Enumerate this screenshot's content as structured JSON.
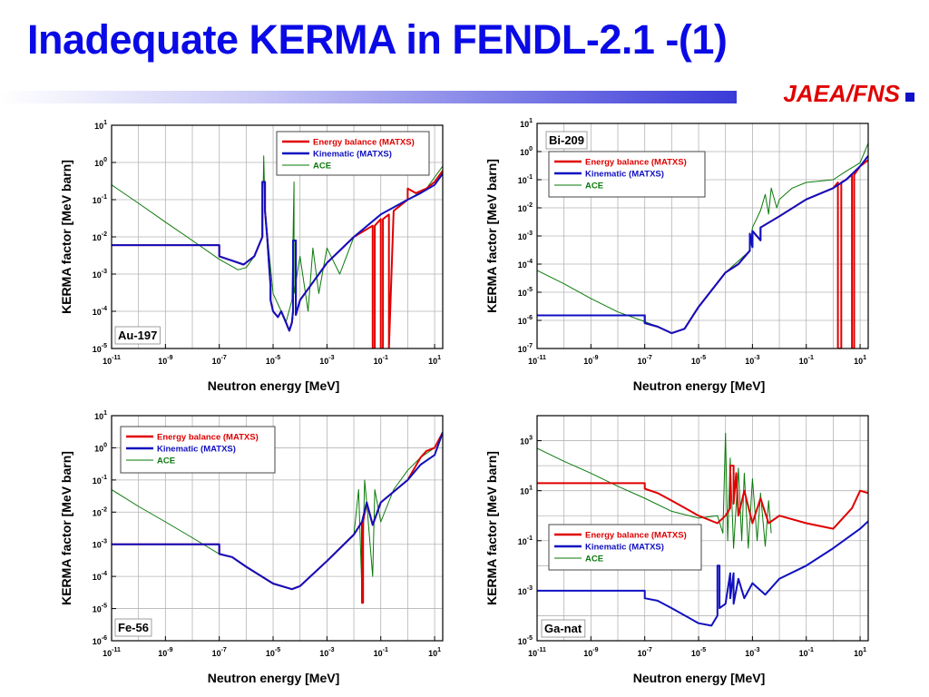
{
  "slide": {
    "title": "Inadequate KERMA in FENDL-2.1 -(1)",
    "org": "JAEA/FNS"
  },
  "colors": {
    "title": "#0a0ae6",
    "org": "#e00000",
    "energy_balance": "#e00000",
    "kinematic": "#1010c0",
    "ace": "#0a7a0a",
    "grid": "#b4b4b4"
  },
  "chart_data": [
    {
      "type": "line",
      "title": "Au-197",
      "xlabel": "Neutron energy [MeV]",
      "ylabel": "KERMA factor [MeV barn]",
      "x_scale": "log",
      "y_scale": "log",
      "xlim": [
        1e-11,
        20
      ],
      "ylim": [
        1e-05,
        10
      ],
      "x_tick_labels": [
        "10-11",
        "10-9",
        "10-7",
        "10-5",
        "10-3",
        "10-1",
        "101"
      ],
      "y_tick_labels": [
        "10-5",
        "10-4",
        "10-3",
        "10-2",
        "10-1",
        "100",
        "101"
      ],
      "legend_position": "top-right",
      "grid": true,
      "series": [
        {
          "name": "Energy balance (MATXS)",
          "color": "#e00000",
          "x": [
            1e-11,
            1e-07,
            1e-07,
            8e-07,
            2e-06,
            4e-06,
            4e-06,
            5e-06,
            5e-06,
            6e-06,
            7e-06,
            8e-06,
            8e-06,
            1e-05,
            1.5e-05,
            2e-05,
            3e-05,
            4e-05,
            5e-05,
            5.5e-05,
            5.5e-05,
            7e-05,
            7e-05,
            0.0001,
            0.001,
            0.01,
            0.05,
            0.05,
            0.06,
            0.06,
            0.1,
            0.1,
            0.12,
            0.12,
            0.2,
            0.2,
            0.3,
            1,
            1,
            2,
            5,
            10,
            20
          ],
          "y": [
            0.006,
            0.006,
            0.003,
            0.0018,
            0.003,
            0.01,
            0.3,
            0.3,
            0.05,
            0.01,
            0.002,
            0.0005,
            0.0002,
            0.0001,
            7e-05,
            0.0001,
            5e-05,
            3e-05,
            5e-05,
            0.0001,
            0.008,
            0.008,
            8e-05,
            0.0002,
            0.002,
            0.01,
            0.02,
            1e-05,
            1e-05,
            0.02,
            0.03,
            1e-05,
            1e-05,
            0.03,
            0.04,
            1e-05,
            0.05,
            0.1,
            0.2,
            0.15,
            0.2,
            0.3,
            0.6
          ]
        },
        {
          "name": "Kinematic (MATXS)",
          "color": "#1010c0",
          "x": [
            1e-11,
            1e-07,
            1e-07,
            8e-07,
            2e-06,
            4e-06,
            4e-06,
            5e-06,
            5e-06,
            6e-06,
            7e-06,
            8e-06,
            8e-06,
            1e-05,
            1.5e-05,
            2e-05,
            3e-05,
            4e-05,
            5e-05,
            5.5e-05,
            5.5e-05,
            7e-05,
            7e-05,
            0.0001,
            0.001,
            0.01,
            0.1,
            1,
            3,
            10,
            20
          ],
          "y": [
            0.006,
            0.006,
            0.003,
            0.0018,
            0.003,
            0.01,
            0.3,
            0.3,
            0.05,
            0.01,
            0.002,
            0.0005,
            0.0002,
            0.0001,
            7e-05,
            0.0001,
            5e-05,
            3e-05,
            5e-05,
            0.0001,
            0.008,
            0.008,
            8e-05,
            0.0002,
            0.002,
            0.01,
            0.04,
            0.1,
            0.15,
            0.25,
            0.5
          ]
        },
        {
          "name": "ACE",
          "color": "#0a7a0a",
          "x": [
            1e-11,
            1e-10,
            1e-09,
            1e-08,
            1e-07,
            5e-07,
            1e-06,
            2e-06,
            4e-06,
            4.5e-06,
            5e-06,
            1e-05,
            2e-05,
            3e-05,
            5e-05,
            6e-05,
            6e-05,
            0.0001,
            0.0002,
            0.0003,
            0.0005,
            0.001,
            0.003,
            0.01,
            0.1,
            1,
            5,
            20
          ],
          "y": [
            0.25,
            0.08,
            0.025,
            0.008,
            0.0025,
            0.0013,
            0.0015,
            0.003,
            0.01,
            1.5,
            0.05,
            0.0003,
            0.0001,
            5e-05,
            0.0002,
            0.3,
            0.0003,
            0.003,
            0.0001,
            0.005,
            0.0003,
            0.005,
            0.001,
            0.01,
            0.04,
            0.1,
            0.2,
            0.8
          ]
        }
      ]
    },
    {
      "type": "line",
      "title": "Bi-209",
      "xlabel": "Neutron energy [MeV]",
      "ylabel": "KERMA factor [MeV barn]",
      "x_scale": "log",
      "y_scale": "log",
      "xlim": [
        1e-11,
        20
      ],
      "ylim": [
        1e-07,
        10
      ],
      "x_tick_labels": [
        "10-11",
        "10-9",
        "10-7",
        "10-5",
        "10-3",
        "10-1",
        "101"
      ],
      "y_tick_labels": [
        "10-7",
        "10-6",
        "10-5",
        "10-4",
        "10-3",
        "10-2",
        "10-1",
        "100",
        "101"
      ],
      "legend_position": "top-left",
      "grid": true,
      "series": [
        {
          "name": "Energy balance (MATXS)",
          "color": "#e00000",
          "x": [
            1e-11,
            1e-07,
            1e-07,
            3e-07,
            1e-06,
            3e-06,
            1e-05,
            0.0001,
            0.0003,
            0.0008,
            0.0008,
            0.001,
            0.001,
            0.002,
            0.002,
            0.01,
            0.1,
            1,
            1.5,
            1.5,
            2,
            2,
            3,
            5,
            5,
            6,
            6,
            10,
            20
          ],
          "y": [
            1.5e-06,
            1.5e-06,
            8e-07,
            6e-07,
            3.5e-07,
            5e-07,
            3e-06,
            5e-05,
            0.0001,
            0.0003,
            0.0012,
            0.0004,
            0.0015,
            0.0007,
            0.002,
            0.005,
            0.02,
            0.05,
            0.08,
            1e-07,
            1e-07,
            0.08,
            0.1,
            0.15,
            1e-07,
            1e-07,
            0.15,
            0.3,
            0.5
          ]
        },
        {
          "name": "Kinematic (MATXS)",
          "color": "#1010c0",
          "x": [
            1e-11,
            1e-07,
            1e-07,
            3e-07,
            1e-06,
            3e-06,
            1e-05,
            0.0001,
            0.0003,
            0.0008,
            0.0008,
            0.001,
            0.001,
            0.002,
            0.002,
            0.01,
            0.1,
            1,
            3,
            10,
            20
          ],
          "y": [
            1.5e-06,
            1.5e-06,
            8e-07,
            6e-07,
            3.5e-07,
            5e-07,
            3e-06,
            5e-05,
            0.0001,
            0.0003,
            0.0012,
            0.0004,
            0.0015,
            0.0007,
            0.002,
            0.005,
            0.02,
            0.05,
            0.1,
            0.3,
            0.7
          ]
        },
        {
          "name": "ACE",
          "color": "#0a7a0a",
          "x": [
            1e-11,
            1e-10,
            1e-09,
            1e-08,
            1e-07,
            3e-07,
            1e-06,
            3e-06,
            1e-05,
            0.0001,
            0.0008,
            0.001,
            0.002,
            0.003,
            0.004,
            0.005,
            0.008,
            0.01,
            0.03,
            0.1,
            1,
            3,
            10,
            20
          ],
          "y": [
            6e-05,
            2e-05,
            6e-06,
            2e-06,
            9e-07,
            6e-07,
            3.5e-07,
            5e-07,
            3e-06,
            5e-05,
            0.0003,
            0.002,
            0.008,
            0.03,
            0.006,
            0.05,
            0.01,
            0.02,
            0.05,
            0.08,
            0.1,
            0.2,
            0.4,
            2
          ]
        }
      ]
    },
    {
      "type": "line",
      "title": "Fe-56",
      "xlabel": "Neutron energy [MeV]",
      "ylabel": "KERMA factor [MeV barn]",
      "x_scale": "log",
      "y_scale": "log",
      "xlim": [
        1e-11,
        20
      ],
      "ylim": [
        1e-06,
        10
      ],
      "x_tick_labels": [
        "10-11",
        "10-9",
        "10-7",
        "10-5",
        "10-3",
        "10-1",
        "101"
      ],
      "y_tick_labels": [
        "10-6",
        "10-5",
        "10-4",
        "10-3",
        "10-2",
        "10-1",
        "100",
        "101"
      ],
      "legend_position": "top-left",
      "grid": true,
      "series": [
        {
          "name": "Energy balance (MATXS)",
          "color": "#e00000",
          "x": [
            1e-11,
            1e-07,
            1e-07,
            3e-07,
            1e-06,
            1e-05,
            5e-05,
            0.0001,
            0.001,
            0.01,
            0.02,
            0.02,
            0.022,
            0.022,
            0.03,
            0.05,
            0.1,
            1,
            3,
            5,
            10,
            20
          ],
          "y": [
            0.001,
            0.001,
            0.0005,
            0.0004,
            0.0002,
            6e-05,
            4e-05,
            5e-05,
            0.0003,
            0.002,
            0.005,
            1.5e-05,
            1.5e-05,
            0.005,
            0.02,
            0.004,
            0.02,
            0.1,
            0.5,
            0.8,
            1.0,
            3
          ]
        },
        {
          "name": "Kinematic (MATXS)",
          "color": "#1010c0",
          "x": [
            1e-11,
            1e-07,
            1e-07,
            3e-07,
            1e-06,
            1e-05,
            5e-05,
            0.0001,
            0.001,
            0.01,
            0.02,
            0.03,
            0.05,
            0.1,
            1,
            3,
            10,
            20
          ],
          "y": [
            0.001,
            0.001,
            0.0005,
            0.0004,
            0.0002,
            6e-05,
            4e-05,
            5e-05,
            0.0003,
            0.002,
            0.005,
            0.02,
            0.004,
            0.02,
            0.1,
            0.3,
            0.6,
            3
          ]
        },
        {
          "name": "ACE",
          "color": "#0a7a0a",
          "x": [
            1e-11,
            1e-10,
            1e-09,
            1e-08,
            1e-07,
            3e-07,
            1e-06,
            1e-05,
            5e-05,
            0.0001,
            0.001,
            0.01,
            0.015,
            0.02,
            0.025,
            0.03,
            0.05,
            0.06,
            0.1,
            0.3,
            1,
            3,
            10,
            20
          ],
          "y": [
            0.05,
            0.015,
            0.005,
            0.0016,
            0.0005,
            0.0004,
            0.0002,
            6e-05,
            4e-05,
            5e-05,
            0.0003,
            0.002,
            0.05,
            3e-05,
            0.1,
            0.02,
            0.0001,
            0.05,
            0.005,
            0.05,
            0.2,
            0.5,
            1.0,
            3
          ]
        }
      ]
    },
    {
      "type": "line",
      "title": "Ga-nat",
      "xlabel": "Neutron energy [MeV]",
      "ylabel": "KERMA factor [MeV barn]",
      "x_scale": "log",
      "y_scale": "log",
      "xlim": [
        1e-11,
        20
      ],
      "ylim": [
        1e-05,
        10000
      ],
      "x_tick_labels": [
        "10-11",
        "10-9",
        "10-7",
        "10-5",
        "10-3",
        "10-1",
        "101"
      ],
      "y_tick_labels": [
        "10-5",
        "10-3",
        "10-1",
        "101",
        "103"
      ],
      "legend_position": "bottom-left",
      "grid": true,
      "series": [
        {
          "name": "Energy balance (MATXS)",
          "color": "#e00000",
          "x": [
            1e-11,
            1e-07,
            1e-07,
            3e-07,
            1e-06,
            1e-05,
            5e-05,
            0.0001,
            0.00015,
            0.00015,
            0.0002,
            0.0002,
            0.00025,
            0.0003,
            0.0005,
            0.001,
            0.002,
            0.004,
            0.01,
            0.1,
            1,
            5,
            10,
            20
          ],
          "y": [
            20,
            20,
            12,
            8,
            4,
            1,
            0.5,
            1,
            2,
            100,
            100,
            3,
            50,
            1,
            10,
            0.5,
            5,
            0.5,
            1,
            0.5,
            0.3,
            2,
            10,
            8
          ]
        },
        {
          "name": "Kinematic (MATXS)",
          "color": "#1010c0",
          "x": [
            1e-11,
            1e-07,
            1e-07,
            3e-07,
            1e-06,
            1e-05,
            3e-05,
            5e-05,
            5e-05,
            6e-05,
            6e-05,
            0.0001,
            0.00015,
            0.00015,
            0.0002,
            0.0002,
            0.0003,
            0.0005,
            0.001,
            0.003,
            0.01,
            0.1,
            1,
            10,
            20
          ],
          "y": [
            0.001,
            0.001,
            0.0005,
            0.0004,
            0.0002,
            5e-05,
            4e-05,
            0.0001,
            0.01,
            0.01,
            0.0002,
            0.0003,
            0.005,
            0.0005,
            0.005,
            0.0003,
            0.003,
            0.0005,
            0.002,
            0.0007,
            0.003,
            0.01,
            0.05,
            0.3,
            0.6
          ]
        },
        {
          "name": "ACE",
          "color": "#0a7a0a",
          "x": [
            1e-11,
            1e-10,
            1e-09,
            1e-08,
            1e-07,
            1e-06,
            1e-05,
            5e-05,
            8e-05,
            0.0001,
            0.00012,
            0.00015,
            0.0002,
            0.0003,
            0.0004,
            0.0005,
            0.0007,
            0.001,
            0.0015,
            0.002,
            0.003,
            0.004,
            0.005
          ],
          "y": [
            500,
            150,
            50,
            15,
            5,
            1.5,
            0.8,
            1,
            0.2,
            2000,
            0.1,
            200,
            0.05,
            80,
            0.1,
            50,
            0.05,
            30,
            0.1,
            8,
            0.06,
            4,
            0.2
          ]
        }
      ]
    }
  ]
}
